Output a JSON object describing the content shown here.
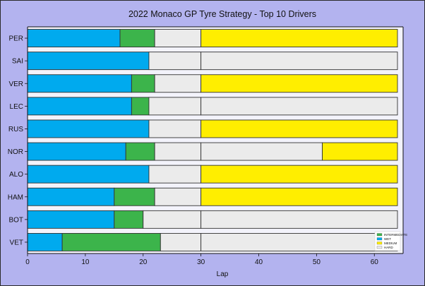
{
  "chart_data": {
    "type": "bar",
    "orientation": "horizontal-stacked",
    "title": "2022 Monaco GP Tyre Strategy - Top 10 Drivers",
    "xlabel": "Lap",
    "ylabel": "",
    "xlim": [
      0,
      64
    ],
    "xticks": [
      0,
      10,
      20,
      30,
      40,
      50,
      60
    ],
    "grid": false,
    "legend_position": "bottom-right",
    "compounds": [
      {
        "name": "INTERMEDIATE",
        "color": "#3cb44b"
      },
      {
        "name": "WET",
        "color": "#00aaee"
      },
      {
        "name": "MEDIUM",
        "color": "#ffee00"
      },
      {
        "name": "HARD",
        "color": "#ebebeb"
      }
    ],
    "drivers": [
      {
        "name": "PER",
        "stints": [
          {
            "compound": "WET",
            "start": 0,
            "end": 16
          },
          {
            "compound": "INTERMEDIATE",
            "start": 16,
            "end": 22
          },
          {
            "compound": "HARD",
            "start": 22,
            "end": 30
          },
          {
            "compound": "MEDIUM",
            "start": 30,
            "end": 64
          }
        ]
      },
      {
        "name": "SAI",
        "stints": [
          {
            "compound": "WET",
            "start": 0,
            "end": 21
          },
          {
            "compound": "HARD",
            "start": 21,
            "end": 30
          },
          {
            "compound": "HARD",
            "start": 30,
            "end": 64
          }
        ]
      },
      {
        "name": "VER",
        "stints": [
          {
            "compound": "WET",
            "start": 0,
            "end": 18
          },
          {
            "compound": "INTERMEDIATE",
            "start": 18,
            "end": 22
          },
          {
            "compound": "HARD",
            "start": 22,
            "end": 30
          },
          {
            "compound": "MEDIUM",
            "start": 30,
            "end": 64
          }
        ]
      },
      {
        "name": "LEC",
        "stints": [
          {
            "compound": "WET",
            "start": 0,
            "end": 18
          },
          {
            "compound": "INTERMEDIATE",
            "start": 18,
            "end": 21
          },
          {
            "compound": "HARD",
            "start": 21,
            "end": 30
          },
          {
            "compound": "HARD",
            "start": 30,
            "end": 64
          }
        ]
      },
      {
        "name": "RUS",
        "stints": [
          {
            "compound": "WET",
            "start": 0,
            "end": 21
          },
          {
            "compound": "HARD",
            "start": 21,
            "end": 30
          },
          {
            "compound": "MEDIUM",
            "start": 30,
            "end": 64
          }
        ]
      },
      {
        "name": "NOR",
        "stints": [
          {
            "compound": "WET",
            "start": 0,
            "end": 17
          },
          {
            "compound": "INTERMEDIATE",
            "start": 17,
            "end": 22
          },
          {
            "compound": "HARD",
            "start": 22,
            "end": 30
          },
          {
            "compound": "HARD",
            "start": 30,
            "end": 51
          },
          {
            "compound": "MEDIUM",
            "start": 51,
            "end": 64
          }
        ]
      },
      {
        "name": "ALO",
        "stints": [
          {
            "compound": "WET",
            "start": 0,
            "end": 21
          },
          {
            "compound": "HARD",
            "start": 21,
            "end": 30
          },
          {
            "compound": "MEDIUM",
            "start": 30,
            "end": 64
          }
        ]
      },
      {
        "name": "HAM",
        "stints": [
          {
            "compound": "WET",
            "start": 0,
            "end": 15
          },
          {
            "compound": "INTERMEDIATE",
            "start": 15,
            "end": 22
          },
          {
            "compound": "HARD",
            "start": 22,
            "end": 30
          },
          {
            "compound": "MEDIUM",
            "start": 30,
            "end": 64
          }
        ]
      },
      {
        "name": "BOT",
        "stints": [
          {
            "compound": "WET",
            "start": 0,
            "end": 15
          },
          {
            "compound": "INTERMEDIATE",
            "start": 15,
            "end": 20
          },
          {
            "compound": "HARD",
            "start": 20,
            "end": 30
          },
          {
            "compound": "HARD",
            "start": 30,
            "end": 64
          }
        ]
      },
      {
        "name": "VET",
        "stints": [
          {
            "compound": "WET",
            "start": 0,
            "end": 6
          },
          {
            "compound": "INTERMEDIATE",
            "start": 6,
            "end": 23
          },
          {
            "compound": "HARD",
            "start": 23,
            "end": 30
          },
          {
            "compound": "HARD",
            "start": 30,
            "end": 64
          }
        ]
      }
    ]
  },
  "colors": {
    "figure_background": "#b3b3ef",
    "axes_background": "#f3f3fb",
    "bar_edge": "#333333"
  }
}
